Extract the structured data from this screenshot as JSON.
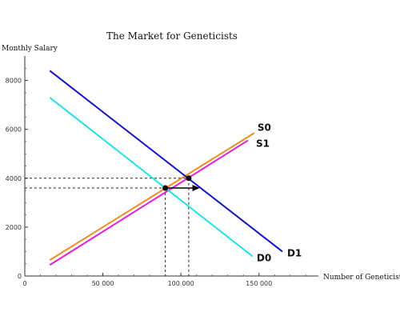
{
  "chart_data": {
    "type": "line",
    "title": "The Market for Geneticists",
    "xlabel": "Number of Geneticists",
    "ylabel": "Monthly Salary",
    "xlim": [
      0,
      185000
    ],
    "ylim": [
      0,
      9000
    ],
    "x_ticks": [
      0,
      50000,
      100000,
      150000
    ],
    "x_tick_labels": [
      "0",
      "50 000",
      "100 000",
      "150 000"
    ],
    "y_ticks": [
      0,
      2000,
      4000,
      6000,
      8000
    ],
    "y_tick_labels": [
      "0",
      "2000",
      "4000",
      "6000",
      "8000"
    ],
    "series": [
      {
        "name": "S0",
        "color": "#f08c24",
        "x": [
          16000,
          147000
        ],
        "y": [
          650,
          5850
        ]
      },
      {
        "name": "S1",
        "color": "#e020d8",
        "x": [
          16000,
          143000
        ],
        "y": [
          450,
          5550
        ]
      },
      {
        "name": "D0",
        "color": "#22e0e6",
        "x": [
          16000,
          146000
        ],
        "y": [
          7300,
          800
        ]
      },
      {
        "name": "D1",
        "color": "#1414c0",
        "x": [
          16000,
          165000
        ],
        "y": [
          8400,
          1000
        ]
      }
    ],
    "equilibria": [
      {
        "x": 105000,
        "y": 4000
      },
      {
        "x": 90000,
        "y": 3600
      }
    ],
    "arrow": {
      "from": [
        90000,
        3600
      ],
      "to": [
        112000,
        3600
      ]
    }
  }
}
